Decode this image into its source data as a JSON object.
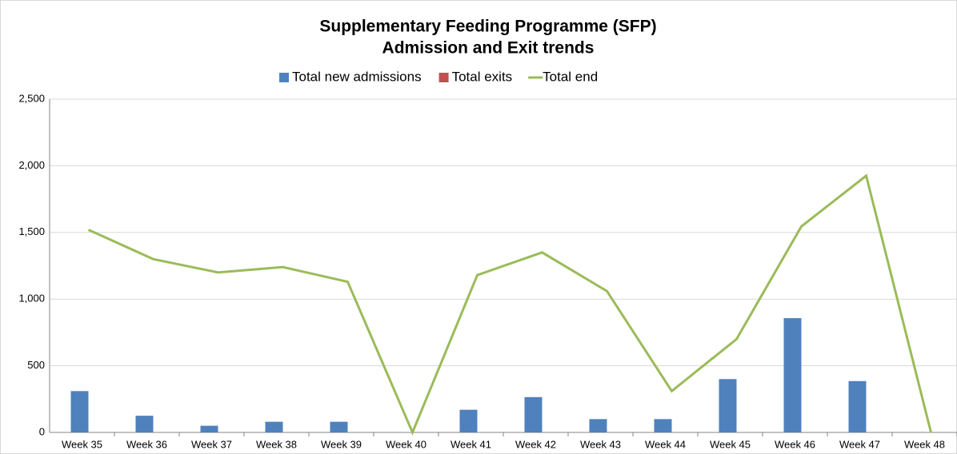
{
  "chart_data": {
    "type": "bar_line",
    "title": [
      "Supplementary Feeding Programme (SFP)",
      "Admission and Exit trends"
    ],
    "categories": [
      "Week 35",
      "Week 36",
      "Week 37",
      "Week 38",
      "Week 39",
      "Week 40",
      "Week 41",
      "Week 42",
      "Week 43",
      "Week 44",
      "Week 45",
      "Week 46",
      "Week 47",
      "Week 48"
    ],
    "series": [
      {
        "name": "Total new admissions",
        "type": "bar",
        "color": "#4f81bd",
        "values": [
          310,
          125,
          50,
          80,
          80,
          0,
          170,
          265,
          100,
          100,
          400,
          857,
          385,
          0
        ]
      },
      {
        "name": "Total exits",
        "type": "bar",
        "color": "#c0504d",
        "values": [
          0,
          0,
          0,
          0,
          0,
          0,
          0,
          0,
          0,
          0,
          0,
          0,
          0,
          0
        ]
      },
      {
        "name": "Total end",
        "type": "line",
        "color": "#9bbb59",
        "values": [
          1520,
          1300,
          1200,
          1240,
          1130,
          0,
          1180,
          1350,
          1060,
          310,
          700,
          1545,
          1925,
          0
        ]
      }
    ],
    "ylim": [
      0,
      2500
    ],
    "yticks": [
      0,
      500,
      {
        "value": 1000,
        "label": "1,000"
      },
      {
        "value": 1500,
        "label": "1,500"
      },
      {
        "value": 2000,
        "label": "2,000"
      },
      {
        "value": 2500,
        "label": "2,500"
      }
    ],
    "grid": true,
    "legend": "top"
  }
}
